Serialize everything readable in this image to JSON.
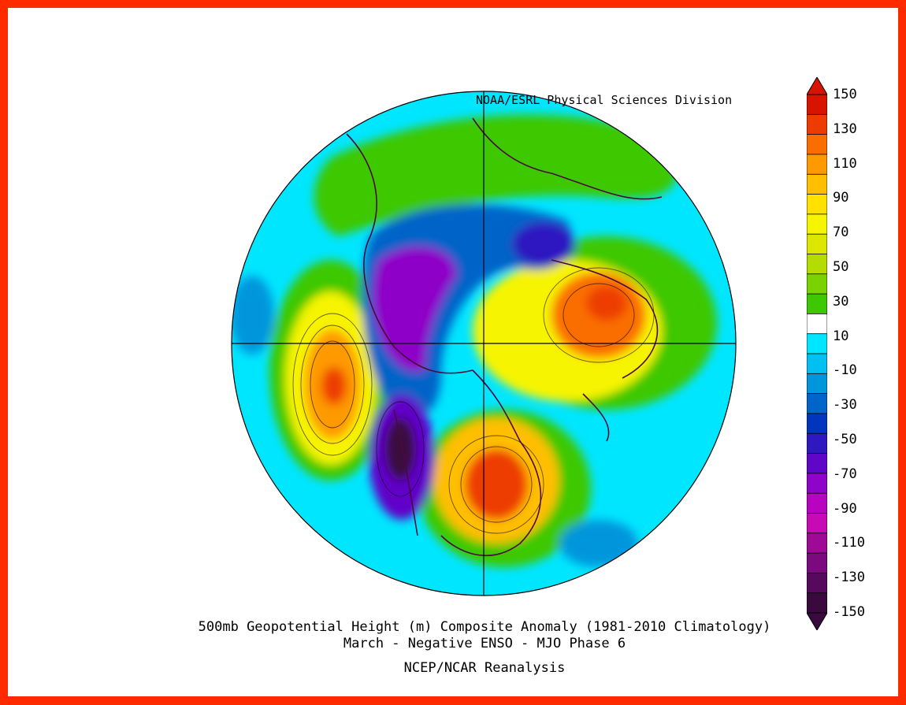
{
  "credit": "NOAA/ESRL Physical Sciences Division",
  "caption": {
    "line1": "500mb Geopotential Height (m) Composite Anomaly (1981-2010 Climatology)",
    "line2": "March - Negative ENSO - MJO Phase 6",
    "line3": "NCEP/NCAR Reanalysis"
  },
  "colorbar": {
    "labels": [
      "150",
      "130",
      "110",
      "90",
      "70",
      "50",
      "30",
      "10",
      "-10",
      "-30",
      "-50",
      "-70",
      "-90",
      "-110",
      "-130",
      "-150"
    ],
    "colors": [
      "#d81400",
      "#ee3c00",
      "#fa6e00",
      "#fe9a00",
      "#ffbf00",
      "#ffe100",
      "#f7f400",
      "#dce600",
      "#b4dc00",
      "#7ad200",
      "#3ec800",
      "#ffffff",
      "#00e6ff",
      "#00c0f2",
      "#0096dc",
      "#0064c8",
      "#0036be",
      "#2f18c0",
      "#6006c8",
      "#8e04c8",
      "#b804c0",
      "#c80ab4",
      "#9e0a96",
      "#7a0a7e",
      "#560a5e",
      "#3a0a3e"
    ]
  },
  "map": {
    "projection": "north polar stereographic",
    "field": "500mb geopotential height anomaly",
    "units": "m"
  }
}
